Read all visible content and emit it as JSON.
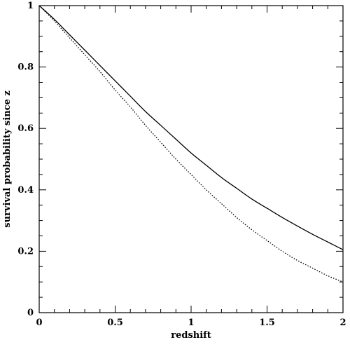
{
  "chart_data": {
    "type": "line",
    "title": "",
    "xlabel": "redshift",
    "ylabel": "survival probability since z",
    "xlim": [
      0,
      2
    ],
    "ylim": [
      0,
      1
    ],
    "x_ticks": [
      {
        "value": 0,
        "label": "0"
      },
      {
        "value": 0.5,
        "label": "0.5"
      },
      {
        "value": 1,
        "label": "1"
      },
      {
        "value": 1.5,
        "label": "1.5"
      },
      {
        "value": 2,
        "label": "2"
      }
    ],
    "y_ticks": [
      {
        "value": 0,
        "label": "0"
      },
      {
        "value": 0.2,
        "label": "0.2"
      },
      {
        "value": 0.4,
        "label": "0.4"
      },
      {
        "value": 0.6,
        "label": "0.6"
      },
      {
        "value": 0.8,
        "label": "0.8"
      },
      {
        "value": 1,
        "label": "1"
      }
    ],
    "grid": false,
    "legend": "none",
    "series": [
      {
        "style": "solid",
        "color": "#000000",
        "x": [
          0,
          0.1,
          0.2,
          0.3,
          0.4,
          0.5,
          0.6,
          0.7,
          0.8,
          0.9,
          1.0,
          1.1,
          1.2,
          1.3,
          1.4,
          1.5,
          1.6,
          1.7,
          1.8,
          1.9,
          2.0
        ],
        "y": [
          1.0,
          0.955,
          0.905,
          0.855,
          0.805,
          0.755,
          0.705,
          0.655,
          0.61,
          0.565,
          0.52,
          0.48,
          0.44,
          0.405,
          0.37,
          0.34,
          0.31,
          0.282,
          0.255,
          0.23,
          0.205
        ]
      },
      {
        "style": "dotted",
        "color": "#000000",
        "x": [
          0,
          0.1,
          0.2,
          0.3,
          0.4,
          0.5,
          0.6,
          0.7,
          0.8,
          0.9,
          1.0,
          1.1,
          1.2,
          1.3,
          1.4,
          1.5,
          1.6,
          1.7,
          1.8,
          1.9,
          2.0
        ],
        "y": [
          1.0,
          0.95,
          0.895,
          0.84,
          0.785,
          0.725,
          0.67,
          0.61,
          0.555,
          0.5,
          0.45,
          0.4,
          0.355,
          0.31,
          0.27,
          0.235,
          0.2,
          0.17,
          0.145,
          0.12,
          0.1
        ]
      }
    ]
  }
}
